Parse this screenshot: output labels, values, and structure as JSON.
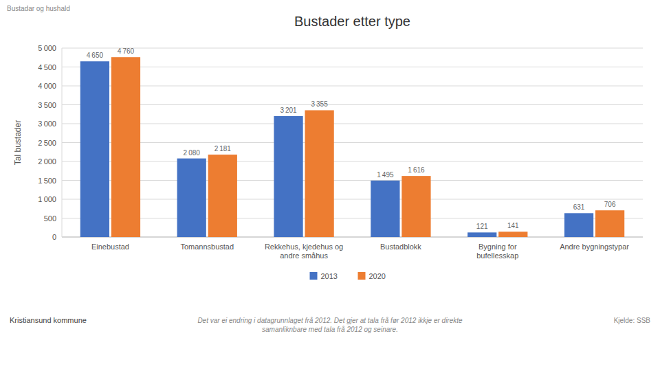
{
  "chart_data": {
    "type": "bar",
    "title": "Bustader etter type",
    "ylabel": "Tal bustader",
    "categories": [
      "Einebustad",
      "Tomannsbustad",
      "Rekkehus, kjedehus og\nandre småhus",
      "Bustadblokk",
      "Bygning for\nbufellesskap",
      "Andre bygningstypar"
    ],
    "series": [
      {
        "name": "2013",
        "color": "#4472C4",
        "values": [
          4650,
          2080,
          3201,
          1495,
          121,
          631
        ],
        "value_labels": [
          "4 650",
          "2 080",
          "3 201",
          "1 495",
          "121",
          "631"
        ]
      },
      {
        "name": "2020",
        "color": "#ED7D31",
        "values": [
          4760,
          2181,
          3355,
          1616,
          141,
          706
        ],
        "value_labels": [
          "4 760",
          "2 181",
          "3 355",
          "1 616",
          "141",
          "706"
        ]
      }
    ],
    "ylim": [
      0,
      5000
    ],
    "yticks": [
      0,
      500,
      {
        "value": 1000,
        "label": "1 000"
      },
      {
        "value": 1500,
        "label": "1 500"
      },
      {
        "value": 2000,
        "label": "2 000"
      },
      {
        "value": 2500,
        "label": "2 500"
      },
      {
        "value": 3000,
        "label": "3 000"
      },
      {
        "value": 3500,
        "label": "3 500"
      },
      {
        "value": 4000,
        "label": "4 000"
      },
      {
        "value": 4500,
        "label": "4 500"
      },
      {
        "value": 5000,
        "label": "5 000"
      }
    ],
    "grid": true,
    "legend": "bottom",
    "data_labels": true,
    "annotations": [
      "Bustadar og hushald",
      "Det var ei endring i datagrunnlaget frå 2012. Det gjer at tala frå før 2012 ikkje er direkte\nsamanliknbare med tala frå 2012 og seinare.",
      "Kjelde: SSB",
      "Kristiansund kommune"
    ]
  }
}
